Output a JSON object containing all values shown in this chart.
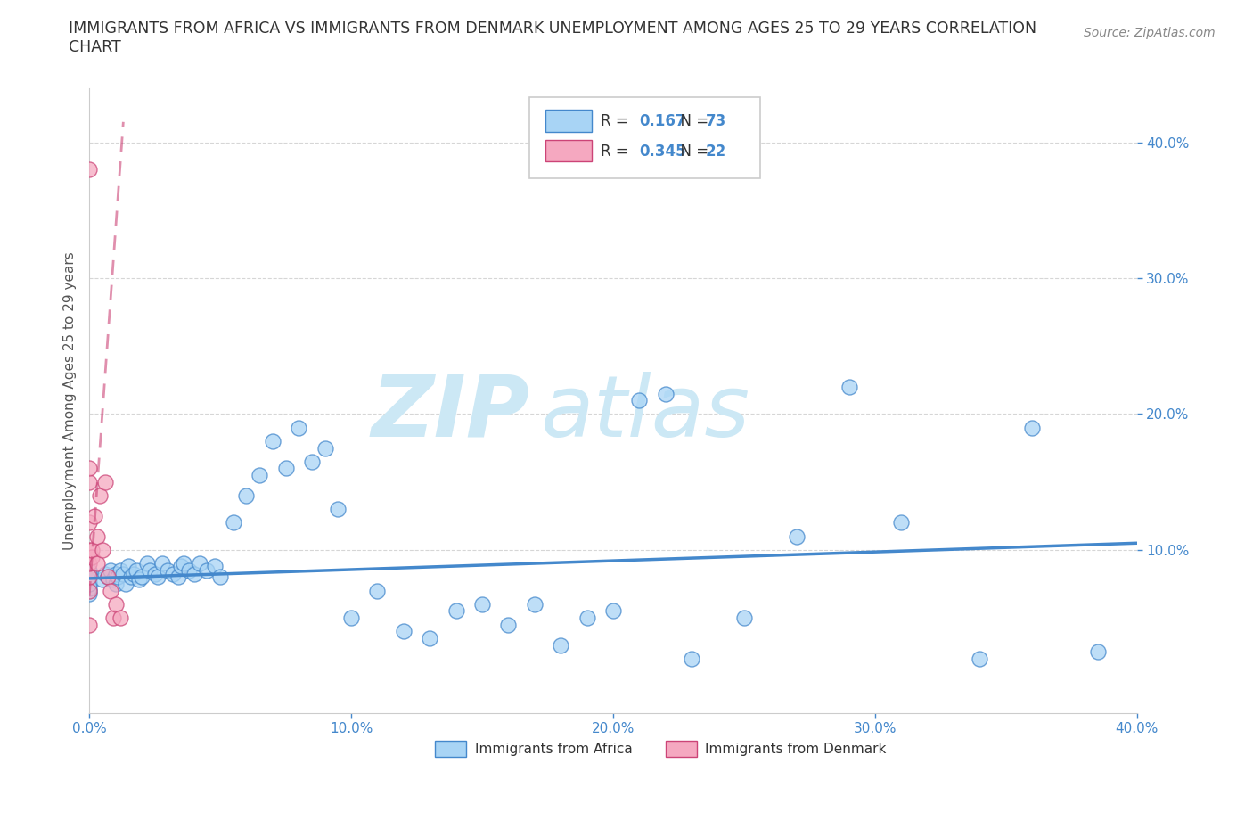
{
  "title": "IMMIGRANTS FROM AFRICA VS IMMIGRANTS FROM DENMARK UNEMPLOYMENT AMONG AGES 25 TO 29 YEARS CORRELATION\nCHART",
  "source": "Source: ZipAtlas.com",
  "ylabel_label": "Unemployment Among Ages 25 to 29 years",
  "legend_africa": "Immigrants from Africa",
  "legend_denmark": "Immigrants from Denmark",
  "xlim": [
    0.0,
    0.4
  ],
  "ylim": [
    -0.02,
    0.44
  ],
  "xticks": [
    0.0,
    0.1,
    0.2,
    0.3,
    0.4
  ],
  "yticks": [
    0.1,
    0.2,
    0.3,
    0.4
  ],
  "R_africa": 0.167,
  "N_africa": 73,
  "R_denmark": 0.345,
  "N_denmark": 22,
  "color_africa": "#a8d4f5",
  "color_denmark": "#f5a8c0",
  "edge_color_africa": "#4488CC",
  "edge_color_denmark": "#CC4477",
  "africa_x": [
    0.0,
    0.0,
    0.0,
    0.0,
    0.0,
    0.0,
    0.0,
    0.0,
    0.0,
    0.0,
    0.005,
    0.006,
    0.007,
    0.008,
    0.009,
    0.01,
    0.01,
    0.011,
    0.012,
    0.013,
    0.014,
    0.015,
    0.016,
    0.017,
    0.018,
    0.019,
    0.02,
    0.022,
    0.023,
    0.025,
    0.026,
    0.028,
    0.03,
    0.032,
    0.034,
    0.035,
    0.036,
    0.038,
    0.04,
    0.042,
    0.045,
    0.048,
    0.05,
    0.055,
    0.06,
    0.065,
    0.07,
    0.075,
    0.08,
    0.085,
    0.09,
    0.095,
    0.1,
    0.11,
    0.12,
    0.13,
    0.14,
    0.15,
    0.16,
    0.17,
    0.18,
    0.19,
    0.2,
    0.21,
    0.22,
    0.23,
    0.25,
    0.27,
    0.29,
    0.31,
    0.34,
    0.36,
    0.385
  ],
  "africa_y": [
    0.075,
    0.08,
    0.082,
    0.078,
    0.07,
    0.068,
    0.072,
    0.08,
    0.075,
    0.085,
    0.078,
    0.082,
    0.08,
    0.085,
    0.078,
    0.075,
    0.082,
    0.08,
    0.085,
    0.082,
    0.075,
    0.088,
    0.08,
    0.082,
    0.085,
    0.078,
    0.08,
    0.09,
    0.085,
    0.082,
    0.08,
    0.09,
    0.085,
    0.082,
    0.08,
    0.088,
    0.09,
    0.085,
    0.082,
    0.09,
    0.085,
    0.088,
    0.08,
    0.12,
    0.14,
    0.155,
    0.18,
    0.16,
    0.19,
    0.165,
    0.175,
    0.13,
    0.05,
    0.07,
    0.04,
    0.035,
    0.055,
    0.06,
    0.045,
    0.06,
    0.03,
    0.05,
    0.055,
    0.21,
    0.215,
    0.02,
    0.05,
    0.11,
    0.22,
    0.12,
    0.02,
    0.19,
    0.025
  ],
  "denmark_x": [
    0.0,
    0.0,
    0.0,
    0.0,
    0.0,
    0.0,
    0.0,
    0.0,
    0.0,
    0.001,
    0.001,
    0.002,
    0.003,
    0.003,
    0.004,
    0.005,
    0.006,
    0.007,
    0.008,
    0.009,
    0.01,
    0.012
  ],
  "denmark_y": [
    0.07,
    0.08,
    0.09,
    0.1,
    0.12,
    0.15,
    0.16,
    0.38,
    0.045,
    0.095,
    0.1,
    0.125,
    0.09,
    0.11,
    0.14,
    0.1,
    0.15,
    0.08,
    0.07,
    0.05,
    0.06,
    0.05
  ],
  "africa_trend_x": [
    0.0,
    0.4
  ],
  "africa_trend_y": [
    0.079,
    0.105
  ],
  "denmark_trend_x": [
    0.0,
    0.013
  ],
  "denmark_trend_y": [
    0.066,
    0.415
  ],
  "watermark_color": "#cce8f5"
}
